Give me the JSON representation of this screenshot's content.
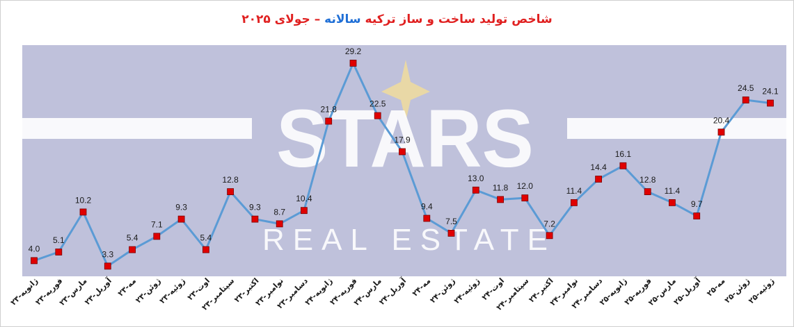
{
  "colors": {
    "plot_bg": "#bfc1db",
    "line": "#5b9bd5",
    "marker": "#e00000",
    "marker_edge": "#7a0000",
    "title_red": "#e02020",
    "title_blue": "#1f6fd6",
    "watermark": "#ffffff",
    "watermark_gold": "#f0dc9c"
  },
  "title": {
    "part1": "شاخص تولید ساخت و ساز ترکیه",
    "part2": "سالانه",
    "part3": "– جولای ۲۰۲۵"
  },
  "watermark": {
    "main": "STARS",
    "sub": "REAL ESTATE"
  },
  "chart_data": {
    "type": "line",
    "title": "شاخص تولید ساخت و ساز ترکیه سالانه – جولای ۲۰۲۵",
    "xlabel": "",
    "ylabel": "",
    "grid": false,
    "legend": "none",
    "ylim": [
      2,
      31.5
    ],
    "categories": [
      "ژانویه-۲۳",
      "فوریه-۲۳",
      "مارس-۲۳",
      "آوریل-۲۳",
      "مه-۲۳",
      "ژوئن-۲۳",
      "ژوئیه-۲۳",
      "اوت-۲۳",
      "سپتامبر-۲۳",
      "اکتبر-۲۳",
      "نوامبر-۲۳",
      "دسامبر-۲۳",
      "ژانویه-۲۴",
      "فوریه-۲۴",
      "مارس-۲۴",
      "آوریل-۲۴",
      "مه-۲۴",
      "ژوئن-۲۴",
      "ژوئیه-۲۴",
      "اوت-۲۴",
      "سپتامبر-۲۴",
      "اکتبر-۲۴",
      "نوامبر-۲۴",
      "دسامبر-۲۴",
      "ژانویه-۲۵",
      "فوریه-۲۵",
      "مارس-۲۵",
      "آوریل-۲۵",
      "مه-۲۵",
      "ژوئن-۲۵",
      "ژوئیه-۲۵"
    ],
    "values": [
      4.0,
      5.1,
      10.2,
      3.3,
      5.4,
      7.1,
      9.3,
      5.4,
      12.8,
      9.3,
      8.7,
      10.4,
      21.8,
      29.2,
      22.5,
      17.9,
      9.4,
      7.5,
      13.0,
      11.8,
      12.0,
      7.2,
      11.4,
      14.4,
      16.1,
      12.8,
      11.4,
      9.7,
      20.4,
      24.5,
      24.1
    ],
    "data_labels": [
      "4.0",
      "5.1",
      "10.2",
      "3.3",
      "5.4",
      "7.1",
      "9.3",
      "5.4",
      "12.8",
      "9.3",
      "8.7",
      "10.4",
      "21.8",
      "29.2",
      "22.5",
      "17.9",
      "9.4",
      "7.5",
      "13.0",
      "11.8",
      "12.0",
      "7.2",
      "11.4",
      "14.4",
      "16.1",
      "12.8",
      "11.4",
      "9.7",
      "20.4",
      "24.5",
      "24.1"
    ]
  }
}
